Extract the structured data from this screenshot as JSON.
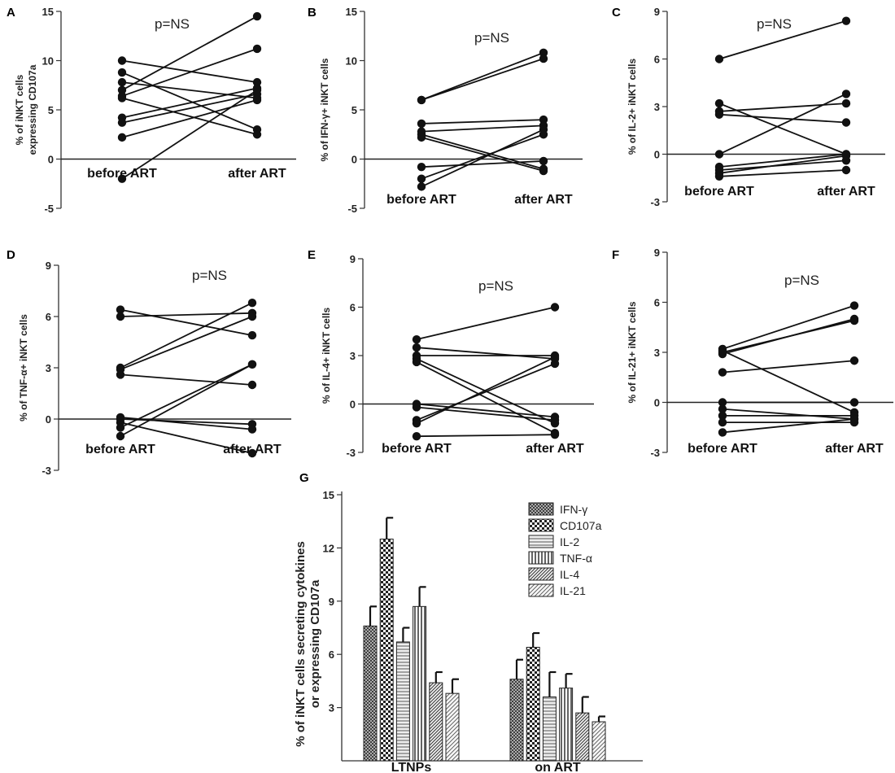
{
  "chart_data": [
    {
      "id": "A",
      "type": "line",
      "panel_label": "A",
      "ylabel": [
        "% of iNKT cells",
        "expressing CD107a"
      ],
      "categories": [
        "before ART",
        "after ART"
      ],
      "ylim": [
        -5,
        15
      ],
      "yticks": [
        -5,
        0,
        5,
        10,
        15
      ],
      "annotation": "p=NS",
      "series": [
        {
          "name": "subject-1",
          "values": [
            10.0,
            7.8
          ]
        },
        {
          "name": "subject-2",
          "values": [
            8.8,
            3.0
          ]
        },
        {
          "name": "subject-3",
          "values": [
            7.8,
            6.2
          ]
        },
        {
          "name": "subject-4",
          "values": [
            7.0,
            14.5
          ]
        },
        {
          "name": "subject-5",
          "values": [
            6.4,
            11.2
          ]
        },
        {
          "name": "subject-6",
          "values": [
            6.2,
            2.5
          ]
        },
        {
          "name": "subject-7",
          "values": [
            4.2,
            7.2
          ]
        },
        {
          "name": "subject-8",
          "values": [
            3.7,
            6.6
          ]
        },
        {
          "name": "subject-9",
          "values": [
            2.2,
            6.0
          ]
        },
        {
          "name": "subject-10",
          "values": [
            -2.0,
            7.0
          ]
        }
      ]
    },
    {
      "id": "B",
      "type": "line",
      "panel_label": "B",
      "ylabel": [
        "% of IFN-γ+ iNKT cells"
      ],
      "categories": [
        "before ART",
        "after ART"
      ],
      "ylim": [
        -5,
        15
      ],
      "yticks": [
        -5,
        0,
        5,
        10,
        15
      ],
      "annotation": "p=NS",
      "series": [
        {
          "name": "subject-1",
          "values": [
            6.0,
            10.8
          ]
        },
        {
          "name": "subject-2",
          "values": [
            6.0,
            10.2
          ]
        },
        {
          "name": "subject-3",
          "values": [
            3.6,
            4.0
          ]
        },
        {
          "name": "subject-4",
          "values": [
            2.8,
            3.4
          ]
        },
        {
          "name": "subject-5",
          "values": [
            2.5,
            -1.0
          ]
        },
        {
          "name": "subject-6",
          "values": [
            2.2,
            -1.2
          ]
        },
        {
          "name": "subject-7",
          "values": [
            -0.8,
            -0.2
          ]
        },
        {
          "name": "subject-8",
          "values": [
            -2.0,
            2.5
          ]
        },
        {
          "name": "subject-9",
          "values": [
            -2.8,
            3.0
          ]
        }
      ]
    },
    {
      "id": "C",
      "type": "line",
      "panel_label": "C",
      "ylabel": [
        "% of IL-2+ iNKT cells"
      ],
      "categories": [
        "before ART",
        "after ART"
      ],
      "ylim": [
        -3,
        9
      ],
      "yticks": [
        -3,
        0,
        3,
        6,
        9
      ],
      "annotation": "p=NS",
      "series": [
        {
          "name": "subject-1",
          "values": [
            6.0,
            8.4
          ]
        },
        {
          "name": "subject-2",
          "values": [
            3.2,
            0.0
          ]
        },
        {
          "name": "subject-3",
          "values": [
            2.7,
            3.2
          ]
        },
        {
          "name": "subject-4",
          "values": [
            2.5,
            2.0
          ]
        },
        {
          "name": "subject-5",
          "values": [
            0.0,
            3.8
          ]
        },
        {
          "name": "subject-6",
          "values": [
            -0.8,
            0.0
          ]
        },
        {
          "name": "subject-7",
          "values": [
            -1.0,
            -0.4
          ]
        },
        {
          "name": "subject-8",
          "values": [
            -1.2,
            -0.1
          ]
        },
        {
          "name": "subject-9",
          "values": [
            -1.4,
            -1.0
          ]
        }
      ]
    },
    {
      "id": "D",
      "type": "line",
      "panel_label": "D",
      "ylabel": [
        "% of TNF-α+ iNKT cells"
      ],
      "categories": [
        "before ART",
        "after ART"
      ],
      "ylim": [
        -3,
        9
      ],
      "yticks": [
        -3,
        0,
        3,
        6,
        9
      ],
      "annotation": "p=NS",
      "series": [
        {
          "name": "subject-1",
          "values": [
            6.4,
            4.9
          ]
        },
        {
          "name": "subject-2",
          "values": [
            6.0,
            6.2
          ]
        },
        {
          "name": "subject-3",
          "values": [
            3.0,
            6.8
          ]
        },
        {
          "name": "subject-4",
          "values": [
            2.9,
            6.0
          ]
        },
        {
          "name": "subject-5",
          "values": [
            2.6,
            2.0
          ]
        },
        {
          "name": "subject-6",
          "values": [
            0.0,
            -0.3
          ]
        },
        {
          "name": "subject-7",
          "values": [
            -0.2,
            -2.0
          ]
        },
        {
          "name": "subject-8",
          "values": [
            -0.5,
            3.2
          ]
        },
        {
          "name": "subject-9",
          "values": [
            -1.0,
            3.2
          ]
        },
        {
          "name": "subject-10",
          "values": [
            0.1,
            -0.6
          ]
        }
      ]
    },
    {
      "id": "E",
      "type": "line",
      "panel_label": "E",
      "ylabel": [
        "% of IL-4+ iNKT cells"
      ],
      "categories": [
        "before ART",
        "after ART"
      ],
      "ylim": [
        -3,
        9
      ],
      "yticks": [
        -3,
        0,
        3,
        6,
        9
      ],
      "annotation": "p=NS",
      "series": [
        {
          "name": "subject-1",
          "values": [
            4.0,
            6.0
          ]
        },
        {
          "name": "subject-2",
          "values": [
            3.5,
            2.8
          ]
        },
        {
          "name": "subject-3",
          "values": [
            3.0,
            3.0
          ]
        },
        {
          "name": "subject-4",
          "values": [
            2.8,
            -1.2
          ]
        },
        {
          "name": "subject-5",
          "values": [
            2.6,
            -1.8
          ]
        },
        {
          "name": "subject-6",
          "values": [
            0.0,
            -0.8
          ]
        },
        {
          "name": "subject-7",
          "values": [
            -0.2,
            -1.0
          ]
        },
        {
          "name": "subject-8",
          "values": [
            -1.0,
            2.5
          ]
        },
        {
          "name": "subject-9",
          "values": [
            -1.2,
            2.9
          ]
        },
        {
          "name": "subject-10",
          "values": [
            -2.0,
            -1.9
          ]
        }
      ]
    },
    {
      "id": "F",
      "type": "line",
      "panel_label": "F",
      "ylabel": [
        "% of IL-21+ iNKT cells"
      ],
      "categories": [
        "before ART",
        "after ART"
      ],
      "ylim": [
        -3,
        9
      ],
      "yticks": [
        -3,
        0,
        3,
        6,
        9
      ],
      "annotation": "p=NS",
      "series": [
        {
          "name": "subject-1",
          "values": [
            3.2,
            5.8
          ]
        },
        {
          "name": "subject-2",
          "values": [
            3.0,
            4.9
          ]
        },
        {
          "name": "subject-3",
          "values": [
            2.9,
            5.0
          ]
        },
        {
          "name": "subject-4",
          "values": [
            3.1,
            -0.6
          ]
        },
        {
          "name": "subject-5",
          "values": [
            1.8,
            2.5
          ]
        },
        {
          "name": "subject-6",
          "values": [
            0.0,
            0.0
          ]
        },
        {
          "name": "subject-7",
          "values": [
            -0.4,
            -1.0
          ]
        },
        {
          "name": "subject-8",
          "values": [
            -0.8,
            -0.8
          ]
        },
        {
          "name": "subject-9",
          "values": [
            -1.2,
            -1.2
          ]
        },
        {
          "name": "subject-10",
          "values": [
            -1.8,
            -1.0
          ]
        }
      ]
    },
    {
      "id": "G",
      "type": "bar",
      "panel_label": "G",
      "ylabel": [
        "% of iNKT cells secreting cytokines",
        "or expressing CD107a"
      ],
      "categories": [
        "LTNPs",
        "on ART"
      ],
      "ylim": [
        0,
        15
      ],
      "yticks": [
        3,
        6,
        9,
        12,
        15
      ],
      "series": [
        {
          "name": "IFN-γ",
          "pattern": "crosshatch",
          "values": [
            7.6,
            4.6
          ],
          "errors": [
            1.1,
            1.1
          ]
        },
        {
          "name": "CD107a",
          "pattern": "checker",
          "values": [
            12.5,
            6.4
          ],
          "errors": [
            1.2,
            0.8
          ]
        },
        {
          "name": "IL-2",
          "pattern": "hlines",
          "values": [
            6.7,
            3.6
          ],
          "errors": [
            0.8,
            1.4
          ]
        },
        {
          "name": "TNF-α",
          "pattern": "vlines",
          "values": [
            8.7,
            4.1
          ],
          "errors": [
            1.1,
            0.8
          ]
        },
        {
          "name": "IL-4",
          "pattern": "diag",
          "values": [
            4.4,
            2.7
          ],
          "errors": [
            0.6,
            0.9
          ]
        },
        {
          "name": "IL-21",
          "pattern": "diag2",
          "values": [
            3.8,
            2.2
          ],
          "errors": [
            0.8,
            0.3
          ]
        }
      ]
    }
  ]
}
